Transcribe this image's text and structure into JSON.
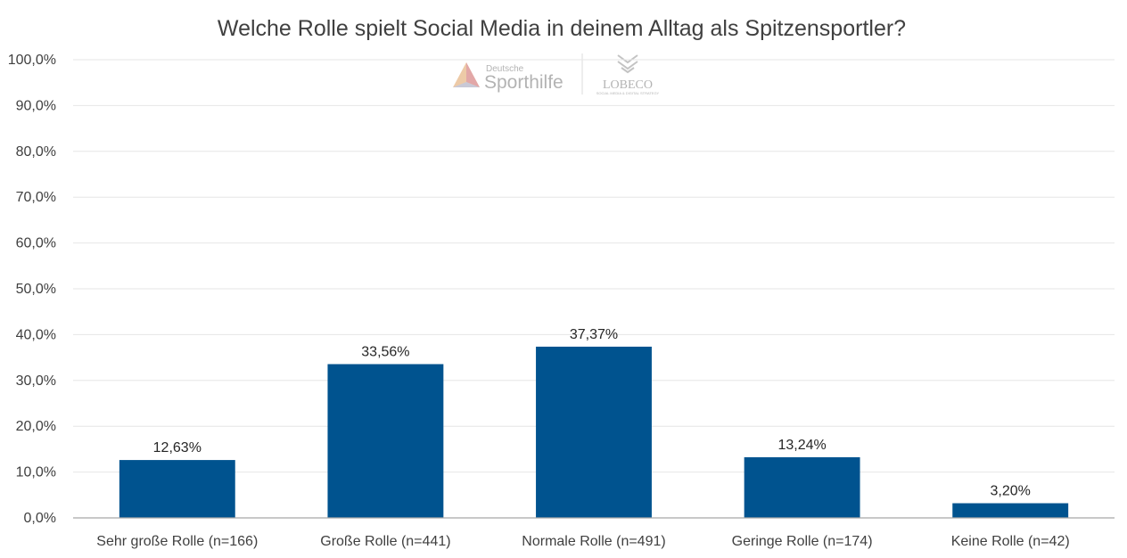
{
  "chart_data": {
    "type": "bar",
    "title": "Welche Rolle spielt Social Media in deinem Alltag als Spitzensportler?",
    "categories": [
      "Sehr große Rolle (n=166)",
      "Große Rolle (n=441)",
      "Normale Rolle (n=491)",
      "Geringe Rolle (n=174)",
      "Keine Rolle (n=42)"
    ],
    "values": [
      12.63,
      33.56,
      37.37,
      13.24,
      3.2
    ],
    "data_labels": [
      "12,63%",
      "33,56%",
      "37,37%",
      "13,24%",
      "3,20%"
    ],
    "ylim": [
      0,
      100
    ],
    "y_ticks": [
      0,
      10,
      20,
      30,
      40,
      50,
      60,
      70,
      80,
      90,
      100
    ],
    "y_tick_labels": [
      "0,0%",
      "10,0%",
      "20,0%",
      "30,0%",
      "40,0%",
      "50,0%",
      "60,0%",
      "70,0%",
      "80,0%",
      "90,0%",
      "100,0%"
    ],
    "xlabel": "",
    "ylabel": "",
    "grid": true,
    "legend": "none",
    "bar_color": "#00538f"
  },
  "watermark": {
    "left_logo_small": "Deutsche",
    "left_logo_large": "Sporthilfe",
    "right_logo": "LOBECO",
    "right_logo_sub": "SOCIAL MEDIA & DIGITAL STRATEGY"
  }
}
